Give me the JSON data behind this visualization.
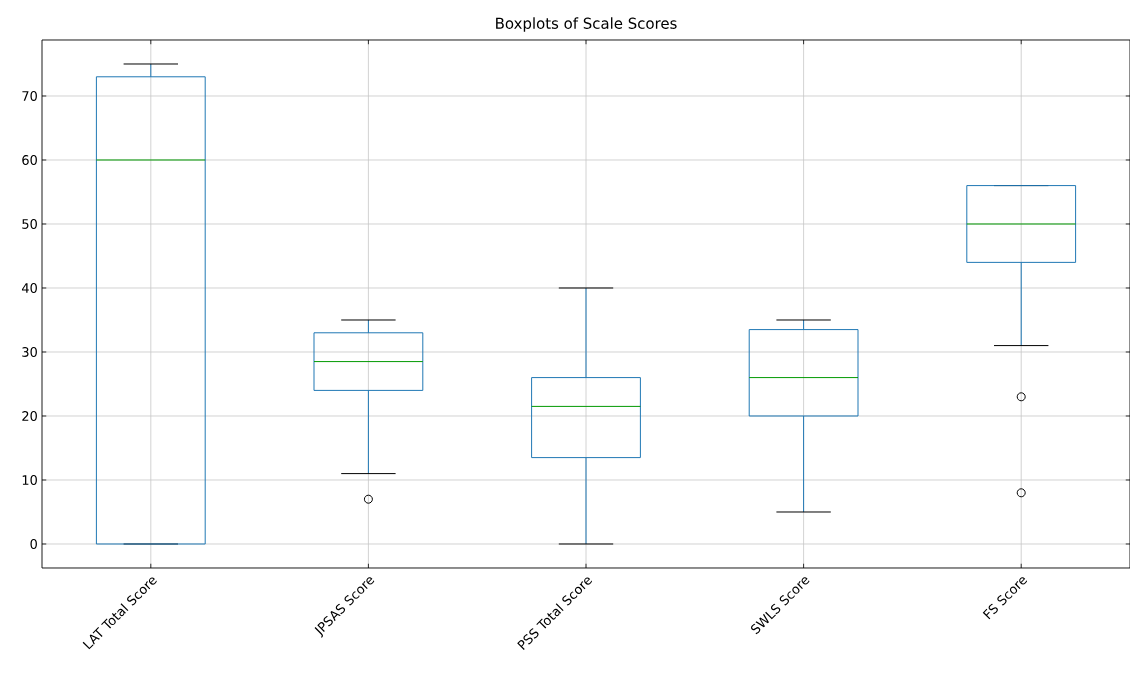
{
  "chart_data": {
    "type": "box",
    "title": "Boxplots of Scale Scores",
    "categories": [
      "LAT Total Score",
      "JPSAS Score",
      "PSS Total Score",
      "SWLS Score",
      "FS Score"
    ],
    "boxes": [
      {
        "low": 0,
        "q1": 0,
        "median": 60,
        "q3": 73,
        "high": 75
      },
      {
        "low": 11,
        "q1": 24,
        "median": 28.5,
        "q3": 33,
        "high": 35,
        "outliers": [
          7
        ]
      },
      {
        "low": 0,
        "q1": 13.5,
        "median": 21.5,
        "q3": 26,
        "high": 40
      },
      {
        "low": 5,
        "q1": 20,
        "median": 26,
        "q3": 33.5,
        "high": 35
      },
      {
        "low": 31,
        "q1": 44,
        "median": 50,
        "q3": 56,
        "high": 56,
        "outliers": [
          23,
          8
        ]
      }
    ],
    "color": "#1f77b4",
    "ylim": [
      -3.75,
      78.75
    ],
    "yticks": [
      0,
      10,
      20,
      30,
      40,
      50,
      60,
      70
    ],
    "grid": true
  }
}
